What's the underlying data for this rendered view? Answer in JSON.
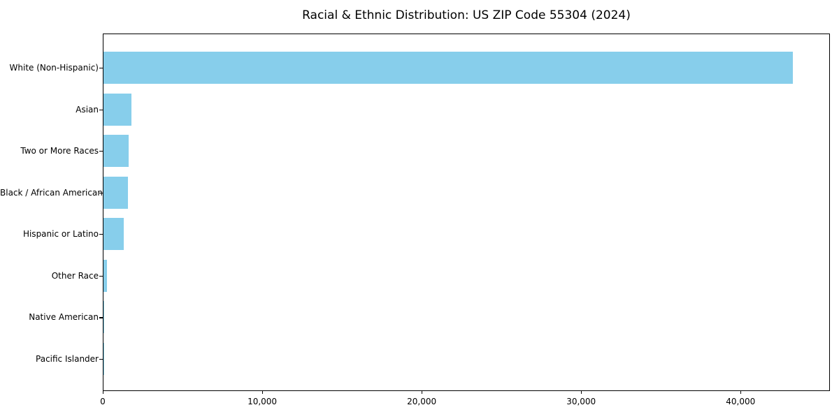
{
  "chart_data": {
    "type": "bar",
    "orientation": "horizontal",
    "title": "Racial & Ethnic Distribution: US ZIP Code 55304 (2024)",
    "categories": [
      "White (Non-Hispanic)",
      "Asian",
      "Two or More Races",
      "Black / African American",
      "Hispanic or Latino",
      "Other Race",
      "Native American",
      "Pacific Islander"
    ],
    "values": [
      43300,
      1750,
      1600,
      1550,
      1270,
      200,
      50,
      15
    ],
    "bar_color": "#87CEEB",
    "axis_color": "#000000",
    "background_color": "#ffffff",
    "xlabel": "",
    "ylabel": "",
    "xlim": [
      0,
      45600
    ],
    "xticks": [
      0,
      10000,
      20000,
      30000,
      40000
    ],
    "xtick_labels": [
      "0",
      "10,000",
      "20,000",
      "30,000",
      "40,000"
    ],
    "grid": false,
    "legend": null
  }
}
